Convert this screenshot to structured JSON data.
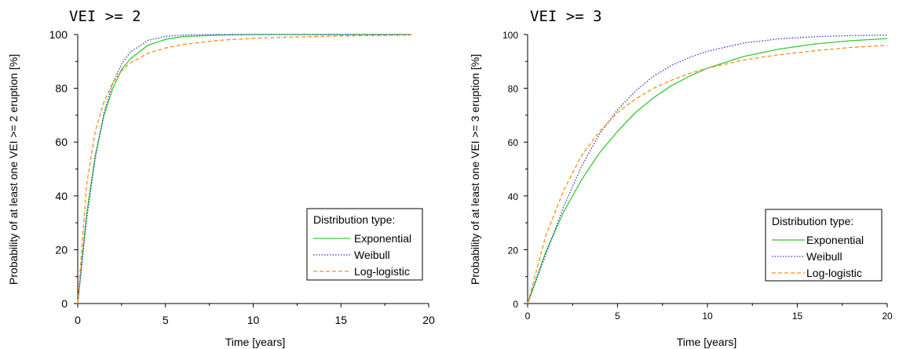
{
  "chart_data": [
    {
      "type": "line",
      "title": "VEI >= 2",
      "xlabel": "Time [years]",
      "ylabel": "Probability of at least one VEI >= 2 eruption [%]",
      "xlim": [
        0,
        20
      ],
      "ylim": [
        0,
        100
      ],
      "xticks": [
        "0",
        "5",
        "10",
        "15",
        "20"
      ],
      "yticks": [
        "0",
        "20",
        "40",
        "60",
        "80",
        "100"
      ],
      "grid": false,
      "legend": {
        "title": "Distribution type:",
        "placement": "bottom-right",
        "entries": [
          "Exponential",
          "Weibull",
          "Log-logistic"
        ]
      },
      "series": [
        {
          "name": "Exponential",
          "color": "#33cc33",
          "style": "solid",
          "x": [
            0,
            0.5,
            1,
            1.5,
            2,
            2.5,
            3,
            4,
            5,
            6,
            8,
            10,
            12,
            15,
            19
          ],
          "y": [
            0,
            33,
            55,
            70,
            80,
            87,
            91,
            96,
            98.2,
            99.2,
            99.8,
            100,
            100,
            100,
            100
          ]
        },
        {
          "name": "Weibull",
          "color": "#3333cc",
          "style": "dotted",
          "x": [
            0,
            0.5,
            1,
            1.5,
            2,
            2.5,
            3,
            4,
            5,
            6,
            8,
            10,
            12,
            15,
            19
          ],
          "y": [
            0,
            31,
            54,
            71,
            82,
            89,
            93.5,
            97.8,
            99.3,
            99.8,
            100,
            100,
            100,
            100,
            100
          ]
        },
        {
          "name": "Log-logistic",
          "color": "#ff8c1a",
          "style": "dashed",
          "x": [
            0,
            0.5,
            1,
            1.5,
            2,
            2.5,
            3,
            4,
            5,
            6,
            8,
            10,
            12,
            15,
            19
          ],
          "y": [
            0,
            44,
            64,
            75,
            82,
            86.5,
            89.5,
            93,
            95,
            96.3,
            97.8,
            98.6,
            99,
            99.5,
            99.8
          ]
        }
      ]
    },
    {
      "type": "line",
      "title": "VEI >= 3",
      "xlabel": "Time [years]",
      "ylabel": "Probability of at least one VEI >= 3 eruption [%]",
      "xlim": [
        0,
        20
      ],
      "ylim": [
        0,
        100
      ],
      "xticks": [
        "0",
        "5",
        "10",
        "15",
        "20"
      ],
      "yticks": [
        "0",
        "20",
        "40",
        "60",
        "80",
        "100"
      ],
      "grid": false,
      "legend": {
        "title": "Distribution type:",
        "placement": "bottom-right",
        "entries": [
          "Exponential",
          "Weibull",
          "Log-logistic"
        ]
      },
      "series": [
        {
          "name": "Exponential",
          "color": "#33cc33",
          "style": "solid",
          "x": [
            0,
            1,
            2,
            3,
            4,
            5,
            6,
            7,
            8,
            9,
            10,
            12,
            14,
            16,
            18,
            20
          ],
          "y": [
            0,
            19,
            34,
            46,
            56,
            64,
            71,
            76.5,
            81,
            84.5,
            87.5,
            91.8,
            94.6,
            96.5,
            97.7,
            98.5
          ]
        },
        {
          "name": "Weibull",
          "color": "#3333cc",
          "style": "dotted",
          "x": [
            0,
            1,
            2,
            3,
            4,
            5,
            6,
            7,
            8,
            9,
            10,
            12,
            14,
            16,
            18,
            20
          ],
          "y": [
            0,
            18,
            36,
            51,
            63,
            72,
            79,
            84.5,
            88.5,
            91.5,
            93.8,
            96.8,
            98.4,
            99.2,
            99.6,
            99.8
          ]
        },
        {
          "name": "Log-logistic",
          "color": "#ff8c1a",
          "style": "dashed",
          "x": [
            0,
            1,
            2,
            3,
            4,
            5,
            6,
            7,
            8,
            9,
            10,
            12,
            14,
            16,
            18,
            20
          ],
          "y": [
            0,
            25,
            42,
            55,
            64,
            71,
            76,
            80,
            83,
            85.5,
            87.5,
            90.5,
            92.5,
            94,
            95.2,
            96
          ]
        }
      ]
    }
  ]
}
